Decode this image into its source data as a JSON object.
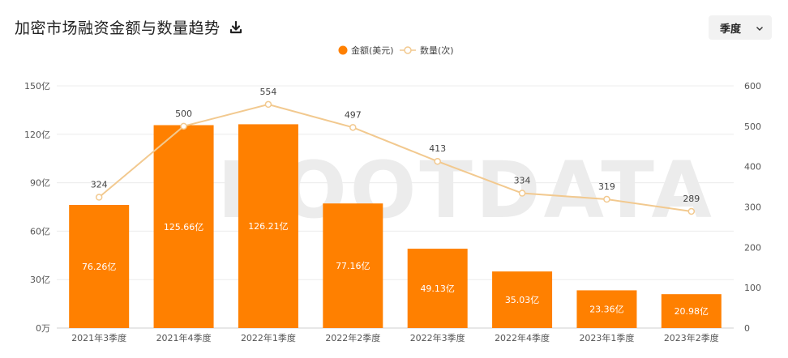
{
  "header": {
    "title": "加密市场融资金额与数量趋势",
    "download_icon": "download-icon"
  },
  "period_select": {
    "selected": "季度",
    "icon": "chevron-down-icon"
  },
  "watermark": "ROOTDATA",
  "chart_data": {
    "type": "bar",
    "categories": [
      "2021年3季度",
      "2021年4季度",
      "2022年1季度",
      "2022年2季度",
      "2022年3季度",
      "2022年4季度",
      "2023年1季度",
      "2023年2季度"
    ],
    "series": [
      {
        "name": "金额(美元)",
        "type": "bar",
        "axis": "left",
        "color": "#FF8000",
        "values": [
          76.26,
          125.66,
          126.21,
          77.16,
          49.13,
          35.03,
          23.36,
          20.98
        ],
        "labels": [
          "76.26亿",
          "125.66亿",
          "126.21亿",
          "77.16亿",
          "49.13亿",
          "35.03亿",
          "23.36亿",
          "20.98亿"
        ]
      },
      {
        "name": "数量(次)",
        "type": "line",
        "axis": "right",
        "color": "#F2C98F",
        "values": [
          324,
          500,
          554,
          497,
          413,
          334,
          319,
          289
        ],
        "labels": [
          "324",
          "500",
          "554",
          "497",
          "413",
          "334",
          "319",
          "289"
        ]
      }
    ],
    "y_left": {
      "ylim": [
        0,
        150
      ],
      "ticks": [
        0,
        30,
        60,
        90,
        120,
        150
      ],
      "tick_labels": [
        "0万",
        "30亿",
        "60亿",
        "90亿",
        "120亿",
        "150亿"
      ]
    },
    "y_right": {
      "ylim": [
        0,
        600
      ],
      "ticks": [
        0,
        100,
        200,
        300,
        400,
        500,
        600
      ],
      "tick_labels": [
        "0",
        "100",
        "200",
        "300",
        "400",
        "500",
        "600"
      ]
    },
    "grid": true,
    "legend": "top-center"
  }
}
